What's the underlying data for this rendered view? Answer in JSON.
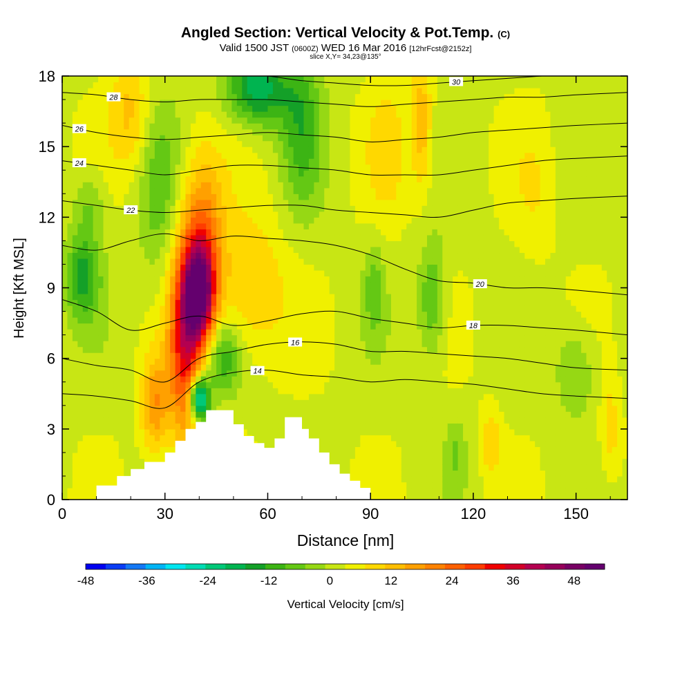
{
  "header": {
    "title_main": "Angled Section: Vertical Velocity & Pot.Temp.",
    "title_unit": "(C)",
    "valid_prefix": "Valid 1500 JST",
    "valid_utc": "(0600Z)",
    "valid_date": "WED 16 Mar 2016",
    "valid_fcst": "[12hrFcst@2152z]",
    "slice": "slice X,Y= 34,23@135°"
  },
  "chart_data": {
    "type": "heatmap",
    "xlabel": "Distance [nm]",
    "ylabel": "Height [Kft MSL]",
    "xlim": [
      0,
      165
    ],
    "ylim": [
      0,
      18
    ],
    "x_ticks": [
      0,
      30,
      60,
      90,
      120,
      150
    ],
    "y_ticks": [
      0,
      3,
      6,
      9,
      12,
      15,
      18
    ],
    "fill_variable": "Vertical Velocity [cm/s]",
    "contour_variable": "Pot.Temp. (C)",
    "colorbar": {
      "label": "Vertical Velocity [cm/s]",
      "min": -48,
      "max": 54,
      "step": 4,
      "tick_labels": [
        -48,
        -36,
        -24,
        -12,
        0,
        12,
        24,
        36,
        48
      ],
      "colors": [
        "#0000f0",
        "#0a3cf5",
        "#1478f5",
        "#00b4f5",
        "#00e6f0",
        "#00dcb4",
        "#00c878",
        "#00b450",
        "#14a028",
        "#3cb414",
        "#64c814",
        "#96d814",
        "#c8e614",
        "#f0f000",
        "#ffd800",
        "#ffbe00",
        "#ffa000",
        "#ff8200",
        "#ff6000",
        "#ff3c00",
        "#f00000",
        "#d20028",
        "#b40050",
        "#96005a",
        "#780064",
        "#64006e"
      ]
    },
    "terrain_profile": [
      {
        "x": 0,
        "h": 0
      },
      {
        "x": 10,
        "h": 0.6
      },
      {
        "x": 16,
        "h": 1
      },
      {
        "x": 20,
        "h": 1.3
      },
      {
        "x": 24,
        "h": 1.6
      },
      {
        "x": 30,
        "h": 2
      },
      {
        "x": 33,
        "h": 2.5
      },
      {
        "x": 36,
        "h": 3
      },
      {
        "x": 39,
        "h": 3.3
      },
      {
        "x": 42,
        "h": 3.8
      },
      {
        "x": 47,
        "h": 3.8
      },
      {
        "x": 50,
        "h": 3.2
      },
      {
        "x": 53,
        "h": 2.7
      },
      {
        "x": 56,
        "h": 2.4
      },
      {
        "x": 59,
        "h": 2.2
      },
      {
        "x": 62,
        "h": 2.6
      },
      {
        "x": 65,
        "h": 3.5
      },
      {
        "x": 70,
        "h": 3
      },
      {
        "x": 72,
        "h": 2.6
      },
      {
        "x": 75,
        "h": 2
      },
      {
        "x": 78,
        "h": 1.5
      },
      {
        "x": 81,
        "h": 1.1
      },
      {
        "x": 84,
        "h": 0.8
      },
      {
        "x": 87,
        "h": 0.5
      },
      {
        "x": 90,
        "h": 0
      },
      {
        "x": 165,
        "h": 0
      }
    ],
    "velocity_features": [
      {
        "x": 40,
        "y": 8.8,
        "sx": 4.5,
        "sy": 2.0,
        "amp": 40
      },
      {
        "x": 36,
        "y": 6.5,
        "sx": 5.0,
        "sy": 4.0,
        "amp": 30
      },
      {
        "x": 27,
        "y": 4.0,
        "sx": 4.0,
        "sy": 2.0,
        "amp": 16
      },
      {
        "x": 41,
        "y": 11.0,
        "sx": 6.0,
        "sy": 3.5,
        "amp": 20
      },
      {
        "x": 55,
        "y": 9.0,
        "sx": 10.0,
        "sy": 3.0,
        "amp": 10
      },
      {
        "x": 40,
        "y": 4.3,
        "sx": 3.0,
        "sy": 1.0,
        "amp": -38
      },
      {
        "x": 47,
        "y": 6.0,
        "sx": 5.0,
        "sy": 1.5,
        "amp": -14
      },
      {
        "x": 57,
        "y": 17.5,
        "sx": 9.0,
        "sy": 1.6,
        "amp": -22
      },
      {
        "x": 70,
        "y": 16.0,
        "sx": 6.0,
        "sy": 3.5,
        "amp": -12
      },
      {
        "x": 28,
        "y": 13.0,
        "sx": 6.0,
        "sy": 4.0,
        "amp": -8
      },
      {
        "x": 6,
        "y": 9.5,
        "sx": 5.0,
        "sy": 1.8,
        "amp": -16
      },
      {
        "x": 8,
        "y": 12.5,
        "sx": 5.0,
        "sy": 1.5,
        "amp": -8
      },
      {
        "x": 20,
        "y": 16.5,
        "sx": 6.0,
        "sy": 2.5,
        "amp": 10
      },
      {
        "x": 95,
        "y": 15.0,
        "sx": 6.0,
        "sy": 3.0,
        "amp": 6
      },
      {
        "x": 108,
        "y": 8.5,
        "sx": 4.0,
        "sy": 2.5,
        "amp": -12
      },
      {
        "x": 105,
        "y": 16.0,
        "sx": 3.0,
        "sy": 3.0,
        "amp": 12
      },
      {
        "x": 91,
        "y": 9.0,
        "sx": 3.0,
        "sy": 2.0,
        "amp": -8
      },
      {
        "x": 150,
        "y": 5.5,
        "sx": 6.0,
        "sy": 2.0,
        "amp": -8
      },
      {
        "x": 160,
        "y": 3.0,
        "sx": 3.0,
        "sy": 2.0,
        "amp": 8
      },
      {
        "x": 125,
        "y": 2.5,
        "sx": 3.0,
        "sy": 1.5,
        "amp": 8
      },
      {
        "x": 115,
        "y": 2.0,
        "sx": 3.0,
        "sy": 1.5,
        "amp": -6
      },
      {
        "x": 138,
        "y": 13.0,
        "sx": 6.0,
        "sy": 3.0,
        "amp": 4
      }
    ],
    "pot_temp_levels": [
      {
        "x": [
          0,
          10,
          20,
          30,
          40,
          50,
          60,
          70,
          80,
          90,
          100,
          110,
          120,
          130,
          140,
          150,
          165
        ],
        "y": [
          4.5,
          4.4,
          4.2,
          3.9,
          5.0,
          5.4,
          5.5,
          5.3,
          5.2,
          5.0,
          5.1,
          5.0,
          4.9,
          4.7,
          4.5,
          4.4,
          4.3
        ],
        "label": "14",
        "label_at": 57
      },
      {
        "x": [
          0,
          10,
          20,
          30,
          40,
          50,
          60,
          70,
          80,
          90,
          100,
          110,
          120,
          130,
          140,
          150,
          165
        ],
        "y": [
          6.0,
          5.7,
          5.5,
          5.0,
          6.0,
          6.3,
          6.6,
          6.7,
          6.6,
          6.3,
          6.3,
          6.2,
          6.1,
          6.0,
          5.8,
          5.6,
          5.5
        ],
        "label": "16",
        "label_at": 68
      },
      {
        "x": [
          0,
          10,
          20,
          30,
          40,
          50,
          60,
          70,
          80,
          90,
          100,
          110,
          120,
          130,
          140,
          150,
          165
        ],
        "y": [
          8.5,
          8.0,
          7.2,
          7.5,
          7.8,
          7.4,
          7.6,
          7.9,
          8.0,
          7.7,
          7.5,
          7.3,
          7.4,
          7.4,
          7.3,
          7.2,
          7.0
        ],
        "label": "18",
        "label_at": 120
      },
      {
        "x": [
          0,
          10,
          20,
          30,
          40,
          50,
          60,
          70,
          80,
          90,
          100,
          110,
          120,
          130,
          140,
          150,
          165
        ],
        "y": [
          10.8,
          10.6,
          11.0,
          11.3,
          11.0,
          11.2,
          11.1,
          11.0,
          10.8,
          10.4,
          9.8,
          9.3,
          9.2,
          9.0,
          9.0,
          8.9,
          8.7
        ],
        "label": "20",
        "label_at": 122
      },
      {
        "x": [
          0,
          10,
          20,
          30,
          40,
          50,
          60,
          70,
          80,
          90,
          100,
          110,
          120,
          130,
          140,
          150,
          165
        ],
        "y": [
          12.7,
          12.5,
          12.3,
          12.2,
          12.3,
          12.4,
          12.5,
          12.5,
          12.3,
          12.2,
          12.1,
          12.0,
          12.3,
          12.6,
          12.7,
          12.8,
          12.9
        ],
        "label": "22",
        "label_at": 20
      },
      {
        "x": [
          0,
          10,
          20,
          30,
          40,
          50,
          60,
          70,
          80,
          90,
          100,
          110,
          120,
          130,
          140,
          150,
          165
        ],
        "y": [
          14.4,
          14.2,
          14.0,
          13.8,
          14.0,
          14.2,
          14.2,
          14.1,
          14.0,
          13.8,
          13.8,
          13.8,
          14.0,
          14.2,
          14.4,
          14.5,
          14.6
        ],
        "label": "24",
        "label_at": 5
      },
      {
        "x": [
          0,
          10,
          20,
          30,
          40,
          50,
          60,
          70,
          80,
          90,
          100,
          110,
          120,
          130,
          140,
          150,
          165
        ],
        "y": [
          15.9,
          15.6,
          15.4,
          15.3,
          15.4,
          15.5,
          15.6,
          15.5,
          15.4,
          15.2,
          15.3,
          15.4,
          15.6,
          15.7,
          15.8,
          15.9,
          16.0
        ],
        "label": "26",
        "label_at": 5
      },
      {
        "x": [
          0,
          10,
          20,
          30,
          40,
          50,
          60,
          70,
          80,
          90,
          100,
          110,
          120,
          130,
          140,
          150,
          165
        ],
        "y": [
          17.3,
          17.2,
          17.0,
          16.9,
          17.0,
          17.0,
          17.0,
          16.9,
          16.8,
          16.7,
          16.8,
          16.9,
          17.0,
          17.1,
          17.1,
          17.2,
          17.3
        ],
        "label": "28",
        "label_at": 15
      },
      {
        "x": [
          0,
          10,
          20,
          30,
          40,
          50,
          60,
          70,
          80,
          90,
          100,
          110,
          120,
          130,
          140,
          150,
          165
        ],
        "y": [
          18.6,
          18.5,
          18.4,
          18.3,
          18.2,
          18.1,
          18.0,
          17.8,
          17.7,
          17.6,
          17.6,
          17.7,
          17.8,
          17.9,
          18.0,
          18.1,
          18.2
        ],
        "label": "30",
        "label_at": 115
      }
    ]
  }
}
